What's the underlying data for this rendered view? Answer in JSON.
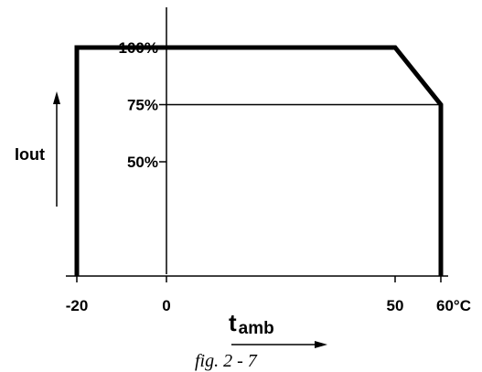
{
  "chart_data": {
    "type": "line",
    "title": "",
    "caption": "fig. 2 - 7",
    "xlabel": {
      "main": "t",
      "subscript": "amb"
    },
    "ylabel": "Iout",
    "x_ticks": [
      {
        "value": -20,
        "label": "-20"
      },
      {
        "value": 0,
        "label": "0"
      },
      {
        "value": 50,
        "label": "50"
      },
      {
        "value": 60,
        "label": "60°C"
      }
    ],
    "y_ticks": [
      {
        "value": 50,
        "label": "50%"
      },
      {
        "value": 75,
        "label": "75%"
      },
      {
        "value": 100,
        "label": "100%"
      }
    ],
    "xlim": [
      -20,
      60
    ],
    "ylim": [
      0,
      100
    ],
    "series": [
      {
        "x": [
          -20,
          -20,
          50,
          60,
          60
        ],
        "y": [
          0,
          100,
          100,
          75,
          0
        ]
      }
    ],
    "reference_lines": [
      {
        "y": 75,
        "x_from": 0,
        "x_to": 60
      }
    ],
    "grid": false,
    "colors": {
      "line": "#000000",
      "background": "#ffffff"
    }
  }
}
